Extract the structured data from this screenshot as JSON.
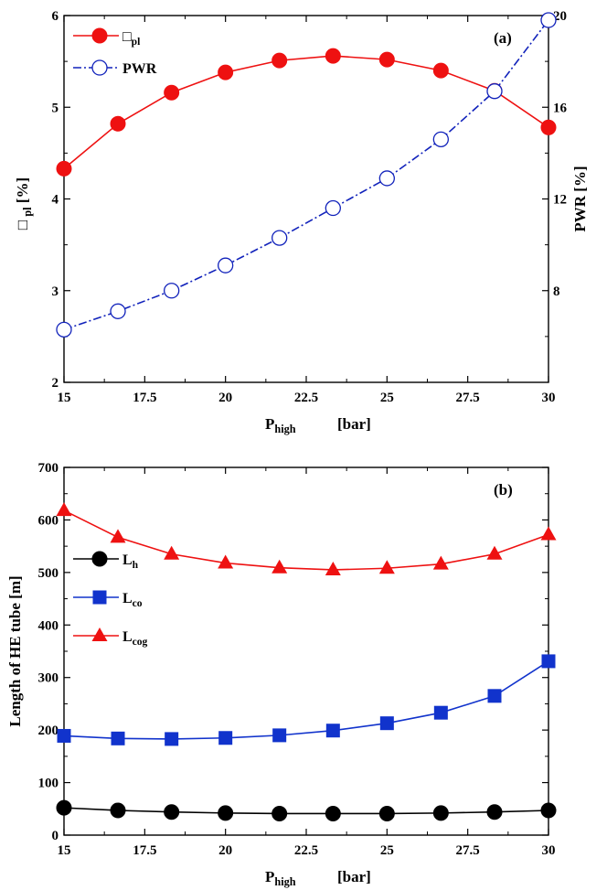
{
  "chart_data": [
    {
      "type": "line",
      "panel_label": "(a)",
      "xlabel": "P",
      "xlabel_sub": "high",
      "xlabel_unit": "[bar]",
      "ylabel_left": "□",
      "ylabel_left_sub": "pl",
      "ylabel_left_unit": "[%]",
      "ylabel_right": "PWR [%]",
      "xlim": [
        15,
        30
      ],
      "ylim_left": [
        2,
        6
      ],
      "ylim_right": [
        4,
        20
      ],
      "xticks": [
        "15",
        "17.5",
        "20",
        "22.5",
        "25",
        "27.5",
        "30"
      ],
      "yticks_left": [
        "2",
        "3",
        "4",
        "5",
        "6"
      ],
      "yticks_right": [
        "8",
        "12",
        "16",
        "20"
      ],
      "legend_position": "top-left",
      "x": [
        15,
        16.67,
        18.33,
        20,
        21.67,
        23.33,
        25,
        26.67,
        28.33,
        30
      ],
      "series": [
        {
          "name": "□",
          "name_sub": "pl",
          "axis": "left",
          "color": "#ee1111",
          "marker": "filled-circle",
          "line": "solid",
          "values": [
            4.33,
            4.82,
            5.16,
            5.38,
            5.51,
            5.56,
            5.52,
            5.4,
            5.18,
            4.78
          ]
        },
        {
          "name": "PWR",
          "name_sub": "",
          "axis": "right",
          "color": "#1122bb",
          "marker": "open-circle",
          "line": "dash-dot",
          "values": [
            6.3,
            7.1,
            8.0,
            9.1,
            10.3,
            11.6,
            12.9,
            14.6,
            16.7,
            19.8
          ]
        }
      ]
    },
    {
      "type": "line",
      "panel_label": "(b)",
      "xlabel": "P",
      "xlabel_sub": "high",
      "xlabel_unit": "[bar]",
      "ylabel_left": "Length of HE tube [m]",
      "xlim": [
        15,
        30
      ],
      "ylim_left": [
        0,
        700
      ],
      "xticks": [
        "15",
        "17.5",
        "20",
        "22.5",
        "25",
        "27.5",
        "30"
      ],
      "yticks_left": [
        "0",
        "100",
        "200",
        "300",
        "400",
        "500",
        "600",
        "700"
      ],
      "legend_position": "middle-left",
      "x": [
        15,
        16.67,
        18.33,
        20,
        21.67,
        23.33,
        25,
        26.67,
        28.33,
        30
      ],
      "series": [
        {
          "name": "L",
          "name_sub": "h",
          "color": "#000000",
          "marker": "filled-circle",
          "line": "solid",
          "values": [
            52,
            47,
            44,
            42,
            41,
            41,
            41,
            42,
            44,
            47
          ]
        },
        {
          "name": "L",
          "name_sub": "co",
          "color": "#1133cc",
          "marker": "filled-square",
          "line": "solid",
          "values": [
            189,
            184,
            183,
            185,
            190,
            199,
            213,
            233,
            265,
            331
          ]
        },
        {
          "name": "L",
          "name_sub": "cog",
          "color": "#ee1111",
          "marker": "filled-triangle",
          "line": "solid",
          "values": [
            618,
            567,
            535,
            518,
            509,
            505,
            508,
            516,
            535,
            572
          ]
        }
      ]
    }
  ]
}
